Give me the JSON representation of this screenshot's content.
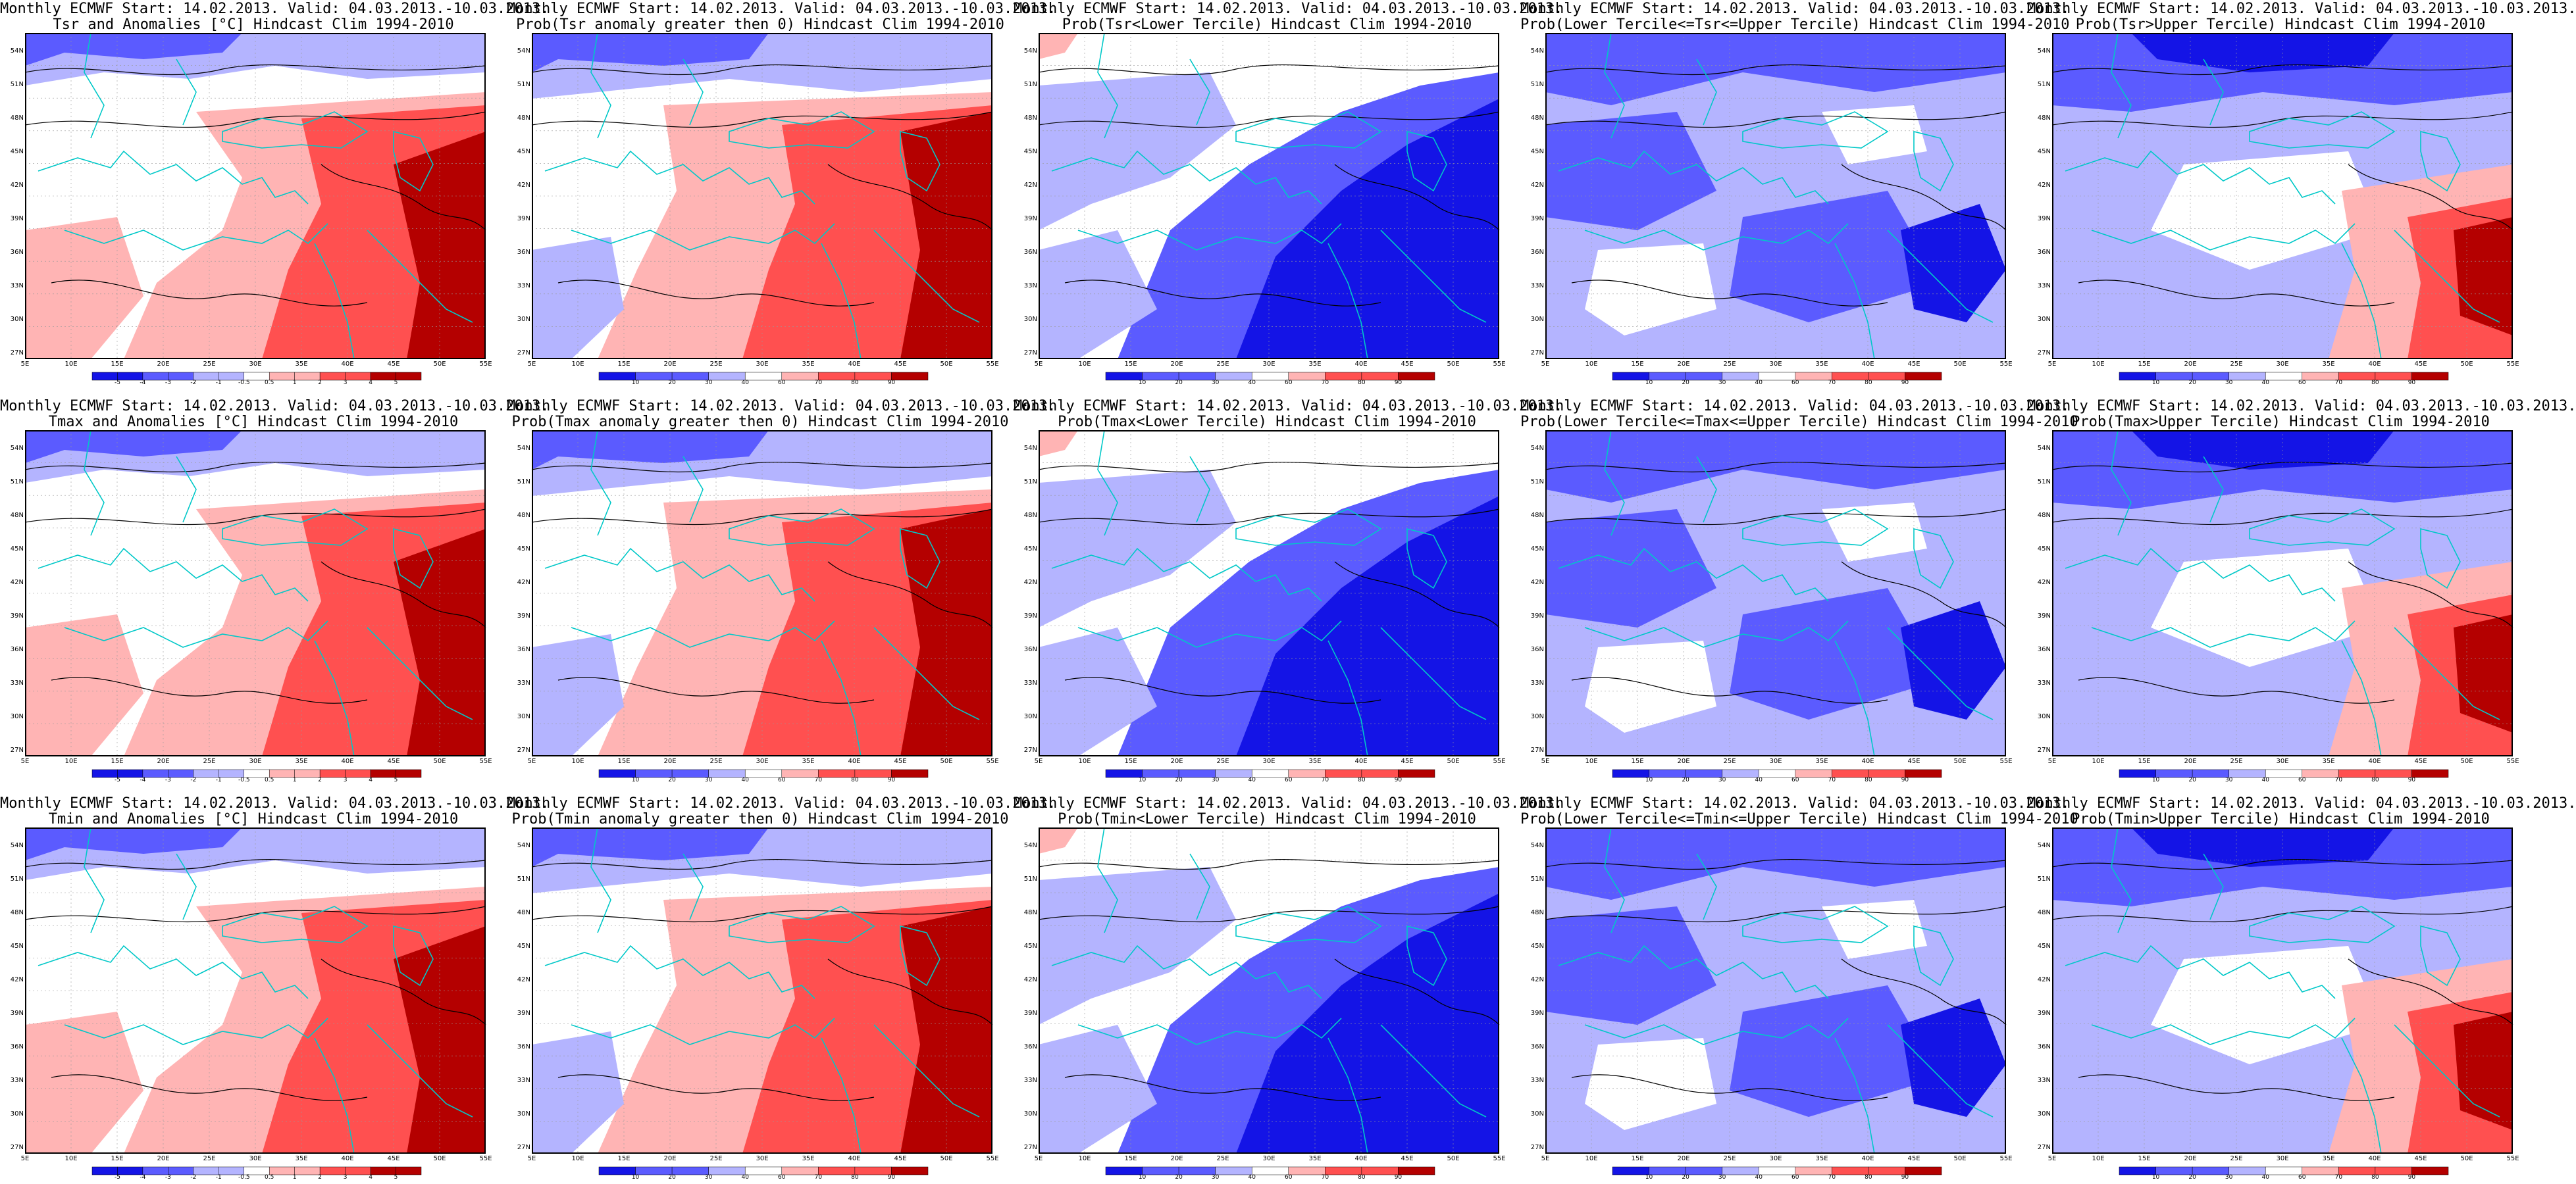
{
  "colors": {
    "deep_blue": "#1414e6",
    "mid_blue": "#5b5bff",
    "light_blue": "#b4b4ff",
    "white": "#ffffff",
    "light_red": "#ffb4b4",
    "mid_red": "#ff5050",
    "deep_red": "#b40000",
    "coast": "#00c8c8",
    "contour": "#000000"
  },
  "axes": {
    "lat_labels": [
      "54N",
      "51N",
      "48N",
      "45N",
      "42N",
      "39N",
      "36N",
      "33N",
      "30N",
      "27N"
    ],
    "lon_labels": [
      "5E",
      "10E",
      "15E",
      "20E",
      "25E",
      "30E",
      "35E",
      "40E",
      "45E",
      "50E",
      "55E"
    ]
  },
  "colorbars": {
    "anomaly": [
      "-5",
      "-4",
      "-3",
      "-2",
      "-1",
      "-0.5",
      "0.5",
      "1",
      "2",
      "3",
      "4",
      "5"
    ],
    "probability": [
      "10",
      "20",
      "30",
      "40",
      "60",
      "70",
      "80",
      "90"
    ]
  },
  "panels": [
    {
      "id": "tsr-anom",
      "line1": "Monthly ECMWF Start: 14.02.2013. Valid: 04.03.2013.-10.03.2013.",
      "line2": "Tsr and Anomalies [°C] Hindcast Clim 1994-2010",
      "scale": "anomaly",
      "pattern": "warm-east"
    },
    {
      "id": "tsr-prob-pos",
      "line1": "Monthly ECMWF Start: 14.02.2013. Valid: 04.03.2013.-10.03.2013.",
      "line2": "Prob(Tsr anomaly greater then 0) Hindcast Clim 1994-2010",
      "scale": "probability",
      "pattern": "warm-east-strong"
    },
    {
      "id": "tsr-lower",
      "line1": "Monthly ECMWF Start: 14.02.2013. Valid: 04.03.2013.-10.03.2013.",
      "line2": "Prob(Tsr<Lower Tercile) Hindcast Clim 1994-2010",
      "scale": "probability",
      "pattern": "blue-southeast"
    },
    {
      "id": "tsr-middle",
      "line1": "Monthly ECMWF Start: 14.02.2013. Valid: 04.03.2013.-10.03.2013.",
      "line2": "Prob(Lower Tercile<=Tsr<=Upper Tercile) Hindcast Clim 1994-2010",
      "scale": "probability",
      "pattern": "blue-mixed"
    },
    {
      "id": "tsr-upper",
      "line1": "Monthly ECMWF Start: 14.02.2013. Valid: 04.03.2013.-10.03.2013.",
      "line2": "Prob(Tsr>Upper Tercile) Hindcast Clim 1994-2010",
      "scale": "probability",
      "pattern": "blue-red-se"
    },
    {
      "id": "tmax-anom",
      "line1": "Monthly ECMWF Start: 14.02.2013. Valid: 04.03.2013.-10.03.2013.",
      "line2": "Tmax and Anomalies [°C] Hindcast Clim 1994-2010",
      "scale": "anomaly",
      "pattern": "warm-east"
    },
    {
      "id": "tmax-prob-pos",
      "line1": "Monthly ECMWF Start: 14.02.2013. Valid: 04.03.2013.-10.03.2013.",
      "line2": "Prob(Tmax anomaly greater then 0) Hindcast Clim 1994-2010",
      "scale": "probability",
      "pattern": "warm-east-strong"
    },
    {
      "id": "tmax-lower",
      "line1": "Monthly ECMWF Start: 14.02.2013. Valid: 04.03.2013.-10.03.2013.",
      "line2": "Prob(Tmax<Lower Tercile) Hindcast Clim 1994-2010",
      "scale": "probability",
      "pattern": "blue-southeast"
    },
    {
      "id": "tmax-middle",
      "line1": "Monthly ECMWF Start: 14.02.2013. Valid: 04.03.2013.-10.03.2013.",
      "line2": "Prob(Lower Tercile<=Tmax<=Upper Tercile) Hindcast Clim 1994-2010",
      "scale": "probability",
      "pattern": "blue-mixed"
    },
    {
      "id": "tmax-upper",
      "line1": "Monthly ECMWF Start: 14.02.2013. Valid: 04.03.2013.-10.03.2013.",
      "line2": "Prob(Tmax>Upper Tercile) Hindcast Clim 1994-2010",
      "scale": "probability",
      "pattern": "blue-red-se"
    },
    {
      "id": "tmin-anom",
      "line1": "Monthly ECMWF Start: 14.02.2013. Valid: 04.03.2013.-10.03.2013.",
      "line2": "Tmin and Anomalies [°C] Hindcast Clim 1994-2010",
      "scale": "anomaly",
      "pattern": "warm-east"
    },
    {
      "id": "tmin-prob-pos",
      "line1": "Monthly ECMWF Start: 14.02.2013. Valid: 04.03.2013.-10.03.2013.",
      "line2": "Prob(Tmin anomaly greater then 0) Hindcast Clim 1994-2010",
      "scale": "probability",
      "pattern": "warm-east-strong"
    },
    {
      "id": "tmin-lower",
      "line1": "Monthly ECMWF Start: 14.02.2013. Valid: 04.03.2013.-10.03.2013.",
      "line2": "Prob(Tmin<Lower Tercile) Hindcast Clim 1994-2010",
      "scale": "probability",
      "pattern": "blue-southeast"
    },
    {
      "id": "tmin-middle",
      "line1": "Monthly ECMWF Start: 14.02.2013. Valid: 04.03.2013.-10.03.2013.",
      "line2": "Prob(Lower Tercile<=Tmin<=Upper Tercile) Hindcast Clim 1994-2010",
      "scale": "probability",
      "pattern": "blue-mixed"
    },
    {
      "id": "tmin-upper",
      "line1": "Monthly ECMWF Start: 14.02.2013. Valid: 04.03.2013.-10.03.2013.",
      "line2": "Prob(Tmin>Upper Tercile) Hindcast Clim 1994-2010",
      "scale": "probability",
      "pattern": "blue-red-se"
    }
  ]
}
